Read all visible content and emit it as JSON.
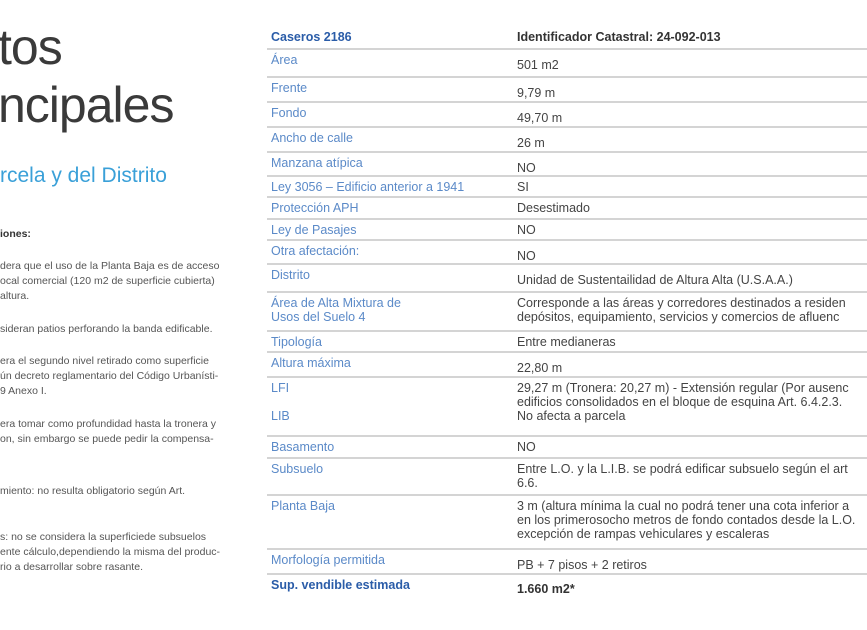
{
  "left": {
    "title_line1": "tos",
    "title_line2": "ncipales",
    "subtitle": "rcela y del Distrito",
    "notes_heading": "iones:",
    "notes": [
      [
        "dera que el uso de la Planta Baja es de acceso",
        "ocal comercial (120 m2 de superficie cubierta)",
        "altura."
      ],
      [
        "sideran patios perforando la banda edificable."
      ],
      [
        "era el segundo nivel retirado como superficie",
        "ún decreto reglamentario del Código Urbanísti-",
        "9 Anexo I."
      ],
      [
        "era tomar como profundidad hasta la tronera y",
        "on, sin embargo se puede pedir la compensa-"
      ],
      [
        "miento: no resulta obligatorio según Art."
      ],
      [
        "s: no se considera la superficiede subsuelos",
        "ente cálculo,dependiendo la misma del produc-",
        "rio a desarrollar sobre rasante."
      ]
    ]
  },
  "table": {
    "header": {
      "label": "Caseros 2186",
      "value": "Identificador Catastral: 24-092-013"
    },
    "rows": [
      {
        "label": "Área",
        "value": "501 m2"
      },
      {
        "label": "Frente",
        "value": "9,79 m"
      },
      {
        "label": "Fondo",
        "value": "49,70 m"
      },
      {
        "label": "Ancho de calle",
        "value": "26 m"
      },
      {
        "label": "Manzana atípica",
        "value": "NO"
      },
      {
        "label": "Ley 3056 – Edificio anterior a 1941",
        "value": "SI"
      },
      {
        "label": "Protección APH",
        "value": "Desestimado"
      },
      {
        "label": "Ley de Pasajes",
        "value": "NO"
      },
      {
        "label": "Otra afectación:",
        "value": "NO"
      },
      {
        "label": "Distrito",
        "value": "Unidad de Sustentailidad de Altura Alta (U.S.A.A.)"
      },
      {
        "label": "Área de Alta Mixtura de\nUsos del Suelo 4",
        "value": "Corresponde a las áreas y corredores destinados a residen\ndepósitos, equipamiento, servicios y comercios de afluenc"
      },
      {
        "label": "Tipología",
        "value": "Entre medianeras"
      },
      {
        "label": "Altura máxima",
        "value": "22,80 m"
      },
      {
        "label": "LFI\n\nLIB",
        "value": "29,27 m (Tronera: 20,27 m) - Extensión regular (Por ausenc\nedificios consolidados en el bloque de esquina Art. 6.4.2.3.\nNo afecta a parcela"
      },
      {
        "label": "Basamento",
        "value": "NO"
      },
      {
        "label": "Subsuelo",
        "value": "Entre L.O. y la L.I.B. se podrá edificar subsuelo según el art\n6.6."
      },
      {
        "label": "Planta Baja",
        "value": "3 m (altura mínima la cual no podrá tener una cota inferior a\nen los primerosocho metros de fondo contados desde la L.O.\nexcepción de rampas vehiculares y escaleras"
      },
      {
        "label": "Morfología permitida",
        "value": "PB + 7 pisos + 2 retiros"
      }
    ],
    "footer": {
      "label": "Sup. vendible estimada",
      "value": "1.660 m2*"
    }
  }
}
